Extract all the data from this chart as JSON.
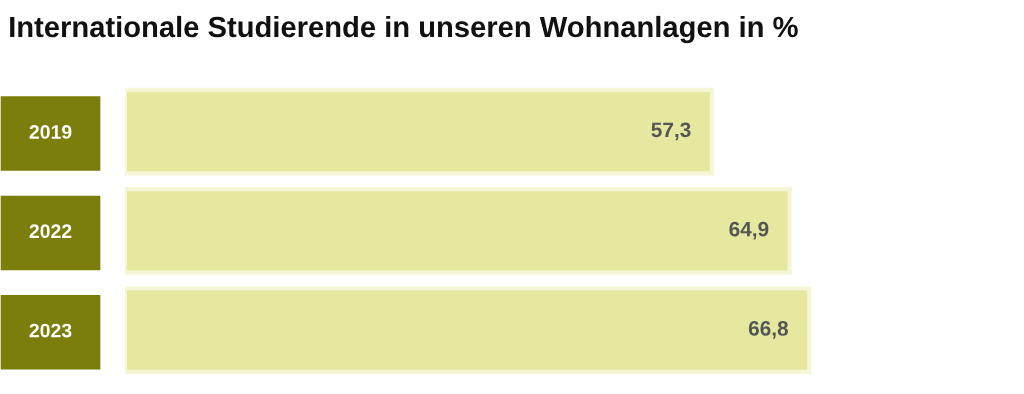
{
  "chart_data": {
    "type": "bar",
    "orientation": "horizontal",
    "title": "Internationale Studierende in unseren Wohnanlagen in %",
    "categories": [
      "2019",
      "2022",
      "2023"
    ],
    "values": [
      57.3,
      64.9,
      66.8
    ],
    "value_labels": [
      "57,3",
      "64,9",
      "66,8"
    ],
    "color": "#e5e89e",
    "grid": false,
    "legend": false,
    "tick_labels": "y"
  }
}
